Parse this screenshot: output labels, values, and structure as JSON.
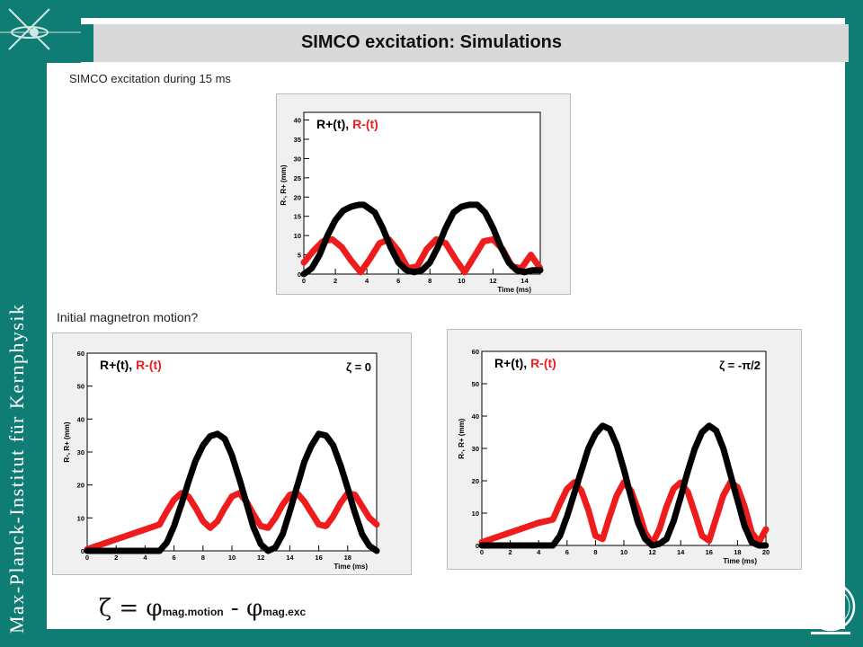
{
  "branding": {
    "institute": "Max-Planck-Institut für Kernphysik"
  },
  "slide": {
    "title": "SIMCO excitation: Simulations",
    "subtitle": "SIMCO excitation during 15 ms",
    "question": "Initial magnetron motion?",
    "formula_main": "ζ = φ",
    "formula_sub1": "mag.motion",
    "formula_minus": " - φ",
    "formula_sub2": "mag.exc"
  },
  "colors": {
    "teal": "#0f7d74",
    "red": "#ee1c1c",
    "black": "#000000"
  },
  "chart_data": [
    {
      "type": "scatter",
      "legend_plus": "R+(t), ",
      "legend_minus": "R-(t)",
      "annotation": "",
      "xlabel": "Time (ms)",
      "ylabel": "R-, R+ (mm)",
      "xlim": [
        0,
        15
      ],
      "ylim": [
        0,
        42
      ],
      "xticks": [
        0,
        2,
        4,
        6,
        8,
        10,
        12,
        14
      ],
      "yticks": [
        0,
        5,
        10,
        15,
        20,
        25,
        30,
        35,
        40
      ],
      "series": [
        {
          "x": [
            0,
            0.5,
            1,
            1.5,
            2,
            2.5,
            3,
            3.5,
            3.8,
            4.5,
            5,
            5.5,
            6,
            6.5,
            7,
            7.5,
            8,
            8.5,
            9,
            9.5,
            10,
            10.5,
            11,
            11.5,
            12,
            12.5,
            13,
            13.5,
            14,
            14.5,
            15
          ],
          "y": [
            0,
            1.5,
            5,
            10,
            14,
            16.5,
            17.5,
            18,
            18,
            16,
            12,
            7,
            3,
            1,
            0.5,
            1,
            3,
            7,
            12,
            16,
            17.5,
            18,
            18,
            16,
            12,
            7,
            3,
            1,
            0.5,
            1,
            1
          ]
        },
        {
          "x": [
            0,
            0.6,
            1.2,
            1.8,
            2.4,
            3,
            3.6,
            4.2,
            4.8,
            5.4,
            6,
            6.6,
            7.2,
            7.8,
            8.4,
            9,
            9.6,
            10.2,
            10.8,
            11.4,
            12,
            12.6,
            13.2,
            13.8,
            14.4,
            15
          ],
          "y": [
            3,
            6,
            8.5,
            9,
            7,
            3.5,
            0.5,
            4,
            8,
            9,
            6,
            1.5,
            2,
            6.5,
            9,
            8,
            4,
            0.5,
            4.5,
            8.5,
            9,
            6.5,
            2,
            1.5,
            5,
            1.5
          ]
        }
      ]
    },
    {
      "type": "scatter",
      "legend_plus": "R+(t), ",
      "legend_minus": "R-(t)",
      "annotation": "ζ = 0",
      "xlabel": "Time (ms)",
      "ylabel": "R-, R+ (mm)",
      "xlim": [
        0,
        20
      ],
      "ylim": [
        0,
        60
      ],
      "xticks": [
        0,
        2,
        4,
        6,
        8,
        10,
        12,
        14,
        16,
        18
      ],
      "yticks": [
        0,
        10,
        20,
        30,
        40,
        50,
        60
      ],
      "series": [
        {
          "x": [
            0,
            2,
            4,
            5,
            5.5,
            6,
            6.5,
            7,
            7.5,
            8,
            8.5,
            9,
            9.5,
            10,
            10.5,
            11,
            11.5,
            12,
            12.5,
            13,
            13.5,
            14,
            14.5,
            15,
            15.5,
            16,
            16.5,
            17,
            17.5,
            18,
            18.5,
            19,
            19.5,
            20
          ],
          "y": [
            0,
            0,
            0,
            0,
            2.5,
            7.5,
            14,
            21,
            27.5,
            32,
            34.8,
            35.5,
            34,
            29,
            22,
            14.5,
            7,
            2,
            0,
            1,
            5,
            12,
            19.5,
            27,
            32,
            35.5,
            35,
            32,
            26,
            19,
            11.5,
            5,
            1.5,
            0
          ]
        },
        {
          "x": [
            0,
            1,
            2,
            3,
            4,
            5,
            5.5,
            6,
            6.5,
            7,
            7.5,
            8,
            8.5,
            9,
            9.5,
            10,
            10.5,
            11,
            11.5,
            12,
            12.5,
            13,
            13.5,
            14,
            14.5,
            15,
            15.5,
            16,
            16.5,
            17,
            17.5,
            18,
            18.5,
            19,
            19.5,
            20
          ],
          "y": [
            0.5,
            2,
            3.5,
            5,
            6.5,
            8,
            12,
            15.5,
            17.5,
            16.5,
            13,
            9,
            7,
            9,
            13,
            16.5,
            17.5,
            15,
            11,
            7.5,
            7,
            10,
            14,
            17,
            17.5,
            15,
            11.5,
            8,
            7.5,
            10.5,
            14.5,
            17.5,
            17,
            13.5,
            10,
            8
          ]
        }
      ]
    },
    {
      "type": "scatter",
      "legend_plus": "R+(t), ",
      "legend_minus": "R-(t)",
      "annotation": "ζ = -π/2",
      "xlabel": "Time (ms)",
      "ylabel": "R-, R+ (mm)",
      "xlim": [
        0,
        20
      ],
      "ylim": [
        0,
        60
      ],
      "xticks": [
        0,
        2,
        4,
        6,
        8,
        10,
        12,
        14,
        16,
        18,
        20
      ],
      "yticks": [
        0,
        10,
        20,
        30,
        40,
        50,
        60
      ],
      "series": [
        {
          "x": [
            0,
            2,
            4,
            5,
            5.5,
            6,
            6.5,
            7,
            7.5,
            8,
            8.5,
            9,
            9.5,
            10,
            10.5,
            11,
            11.5,
            12,
            12.5,
            13,
            13.5,
            14,
            14.5,
            15,
            15.5,
            16,
            16.5,
            17,
            17.5,
            18,
            18.5,
            19,
            19.5,
            20
          ],
          "y": [
            0,
            0,
            0,
            0,
            3,
            9,
            16,
            23,
            30,
            34.5,
            37,
            36,
            31,
            23.5,
            15,
            7,
            2,
            0,
            0.5,
            2,
            7.5,
            15,
            23,
            30,
            35,
            37,
            35.5,
            30,
            22,
            14,
            6,
            1,
            0,
            0
          ]
        },
        {
          "x": [
            0,
            1,
            2,
            3,
            4,
            5,
            5.5,
            6,
            6.5,
            7,
            7.5,
            8,
            8.5,
            9,
            9.5,
            10,
            10.5,
            11,
            11.5,
            12,
            12.5,
            13,
            13.5,
            14,
            14.5,
            15,
            15.5,
            16,
            16.5,
            17,
            17.5,
            18,
            18.5,
            19,
            19.5,
            20
          ],
          "y": [
            1,
            2.5,
            4,
            5.5,
            7,
            8,
            13,
            17.5,
            19.5,
            17,
            11,
            3,
            2,
            9,
            15.5,
            19.5,
            17,
            11,
            4,
            0.5,
            5,
            12,
            17.5,
            19.5,
            16.5,
            10,
            3,
            1.5,
            8.5,
            15.5,
            19.5,
            18,
            12,
            4,
            1,
            5
          ]
        }
      ]
    }
  ]
}
